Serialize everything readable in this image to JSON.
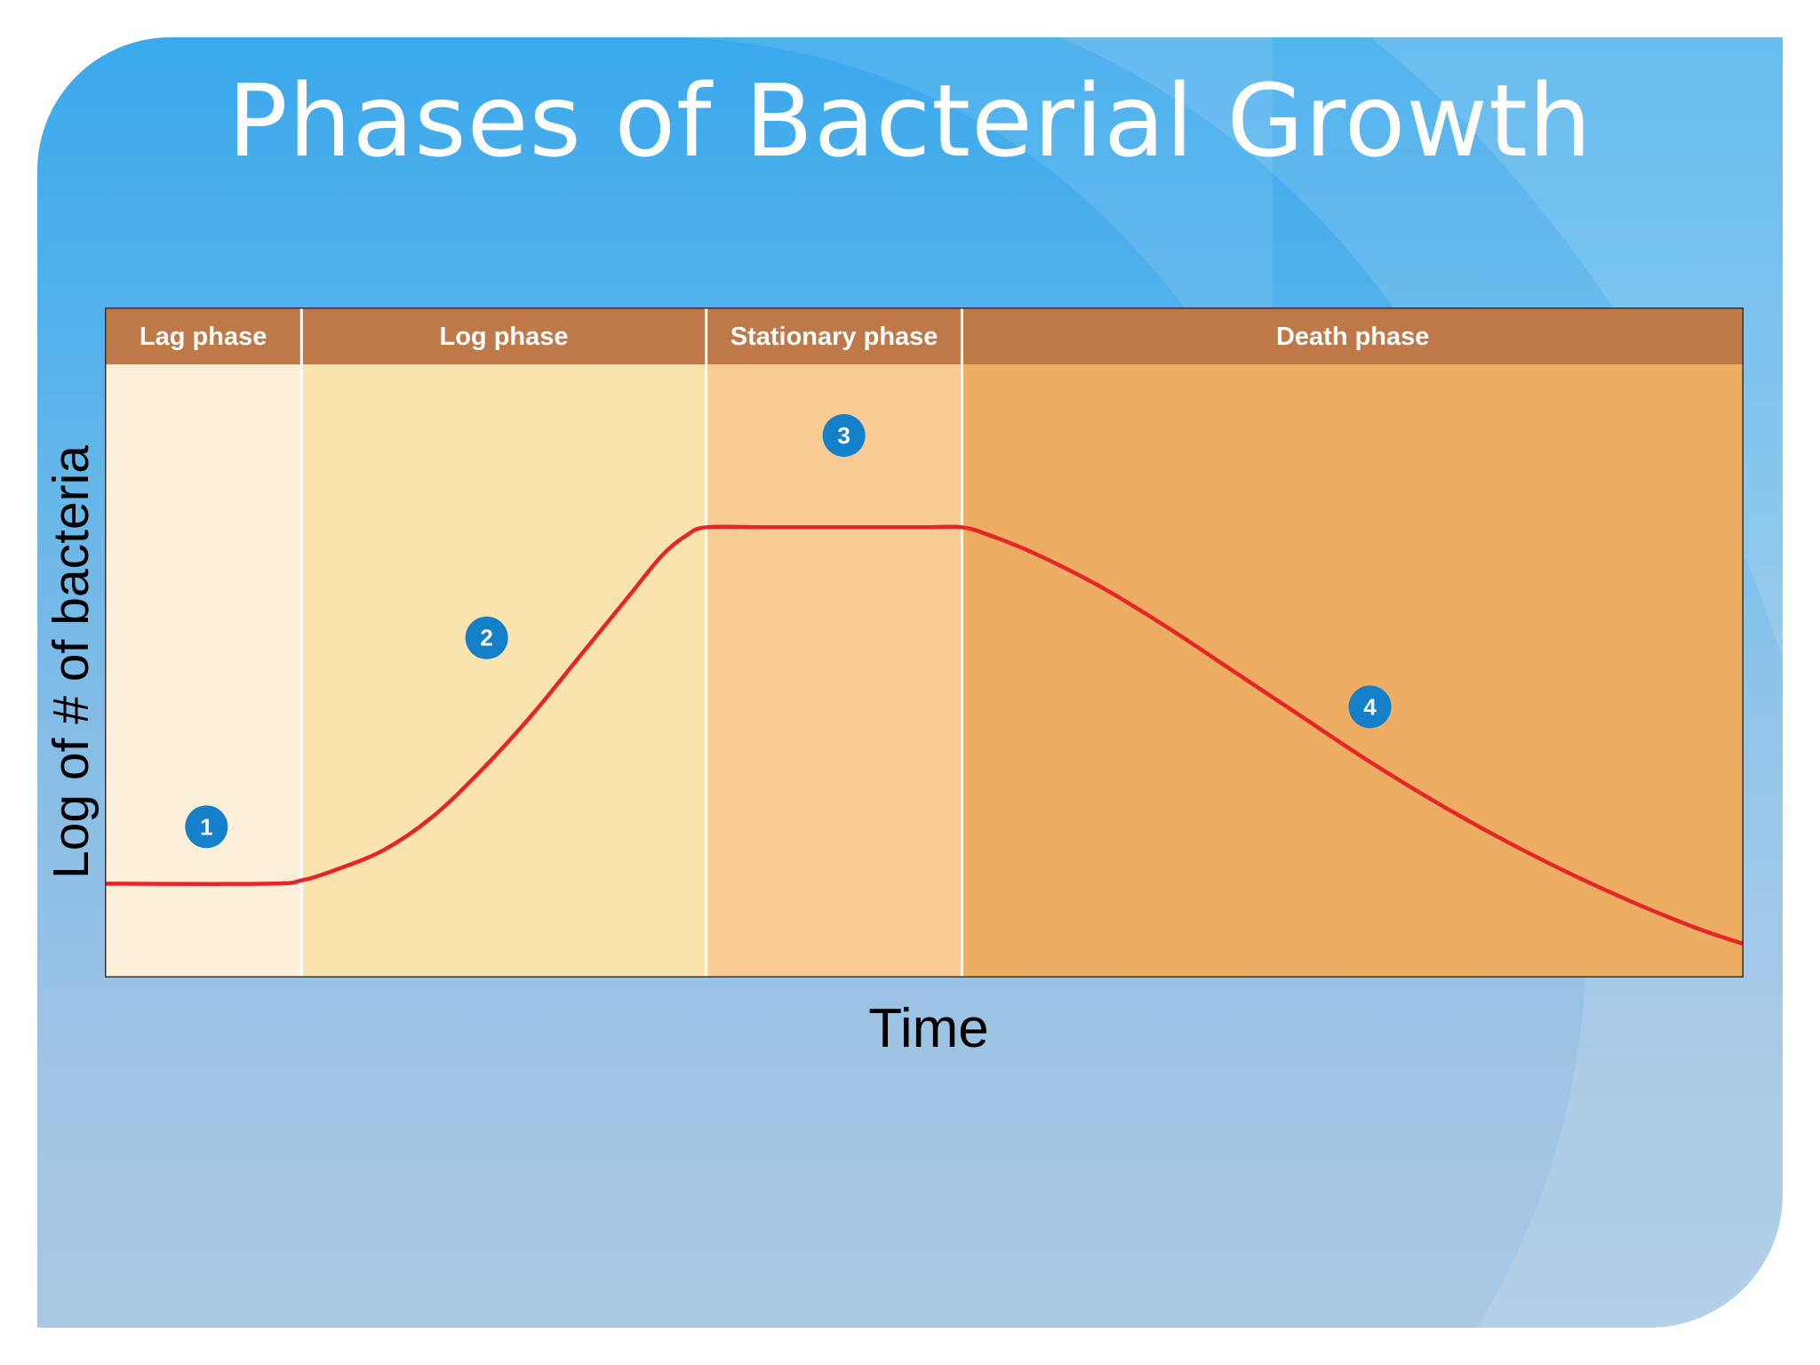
{
  "slide": {
    "title": "Phases of Bacterial Growth"
  },
  "chart_data": {
    "type": "line",
    "title": "",
    "xlabel": "Time",
    "ylabel": "Log of # of bacteria",
    "grid": false,
    "legend": "none",
    "xlim": [
      0,
      100
    ],
    "ylim": [
      0,
      100
    ],
    "phases": [
      {
        "label": "Lag phase",
        "x_start": 0,
        "x_end": 12,
        "color": "#fcefd9"
      },
      {
        "label": "Log phase",
        "x_start": 12,
        "x_end": 36.7,
        "color": "#fbe3ae"
      },
      {
        "label": "Stationary phase",
        "x_start": 36.7,
        "x_end": 52.3,
        "color": "#f8ca94"
      },
      {
        "label": "Death phase",
        "x_start": 52.3,
        "x_end": 100,
        "color": "#edae63"
      }
    ],
    "markers": [
      {
        "label": "1",
        "x": 6.2,
        "y": 22.5
      },
      {
        "label": "2",
        "x": 23.3,
        "y": 50.7
      },
      {
        "label": "3",
        "x": 45.1,
        "y": 80.9
      },
      {
        "label": "4",
        "x": 77.2,
        "y": 40.4
      }
    ],
    "series": [
      {
        "x": [
          0,
          10,
          12,
          14,
          17,
          20,
          23,
          26,
          29,
          32,
          34,
          35.5,
          36.7,
          40,
          45,
          50,
          52.3,
          54,
          57,
          61,
          65,
          69,
          73,
          77,
          81,
          85,
          89,
          93,
          97,
          100
        ],
        "y": [
          14,
          14,
          14.5,
          16,
          19,
          24,
          31,
          39,
          48,
          57,
          63,
          66,
          67.2,
          67.2,
          67.2,
          67.2,
          67.2,
          66,
          63,
          58,
          52,
          45.5,
          39,
          32.5,
          26.5,
          21,
          16,
          11.5,
          7.5,
          5
        ]
      }
    ],
    "colors": {
      "curve": "#e52526",
      "header": "#bf7848",
      "header_text": "#ffffff",
      "marker_fill": "#1380c9",
      "divider": "#ffffff"
    }
  }
}
